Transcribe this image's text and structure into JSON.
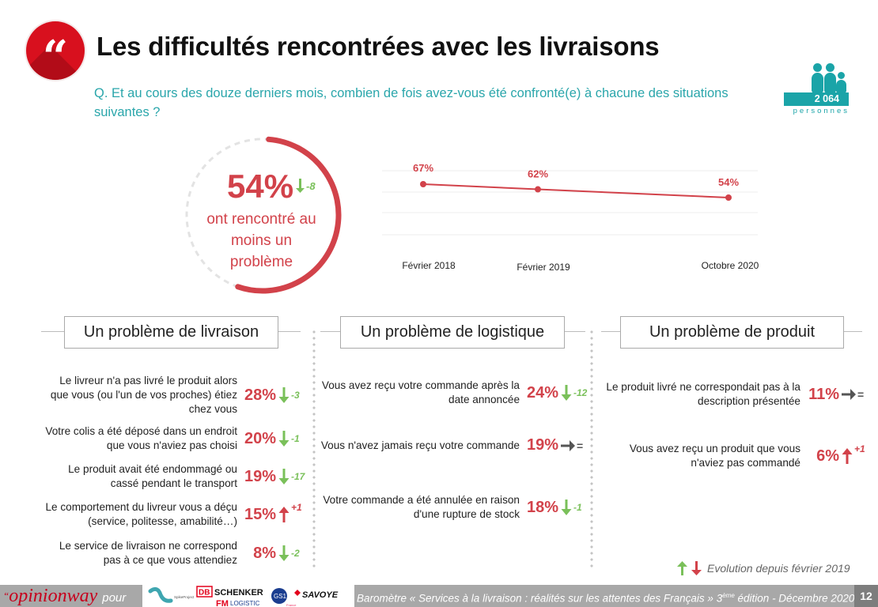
{
  "header": {
    "quote_icon": "quote-icon",
    "quote_glyph": "“",
    "title": "Les difficultés rencontrées avec les livraisons",
    "question": "Q. Et au cours des douze derniers mois, combien de fois avez-vous été confronté(e) à chacune des situations suivantes ?"
  },
  "respondents": {
    "icon": "people-icon",
    "count": "2 064",
    "label": "personnes"
  },
  "gauge": {
    "value_pct": 54,
    "value_label": "54%",
    "delta": "-8",
    "delta_direction": "down",
    "text": "ont rencontré au moins un problème"
  },
  "chart_data": {
    "type": "line",
    "title": "",
    "xlabel": "",
    "ylabel": "",
    "categories": [
      "Février 2018",
      "Février 2019",
      "Octobre 2020"
    ],
    "values": [
      67,
      62,
      54
    ],
    "data_labels": [
      "67%",
      "62%",
      "54%"
    ],
    "ylim": [
      0,
      80
    ],
    "grid": true,
    "series_color": "#d2424a"
  },
  "sections": [
    {
      "title": "Un problème de livraison",
      "items": [
        {
          "label": "Le livreur n'a pas livré le produit alors que vous (ou l'un de vos proches) étiez chez vous",
          "pct": "28%",
          "dir": "down",
          "delta": "-3"
        },
        {
          "label": "Votre colis a été déposé dans un endroit que vous n'aviez pas choisi",
          "pct": "20%",
          "dir": "down",
          "delta": "-1"
        },
        {
          "label": "Le produit avait été endommagé ou cassé pendant le transport",
          "pct": "19%",
          "dir": "down",
          "delta": "-17"
        },
        {
          "label": "Le comportement du livreur vous a déçu (service, politesse, amabilité…)",
          "pct": "15%",
          "dir": "up",
          "delta": "+1"
        },
        {
          "label": "Le service de livraison ne correspond pas à ce que vous attendiez",
          "pct": "8%",
          "dir": "down",
          "delta": "-2"
        }
      ]
    },
    {
      "title": "Un problème de logistique",
      "items": [
        {
          "label": "Vous avez reçu votre commande après la date annoncée",
          "pct": "24%",
          "dir": "down",
          "delta": "-12"
        },
        {
          "label": "Vous n'avez jamais reçu votre commande",
          "pct": "19%",
          "dir": "eq",
          "delta": "="
        },
        {
          "label": "Votre commande a été annulée en raison d'une rupture de stock",
          "pct": "18%",
          "dir": "down",
          "delta": "-1"
        }
      ]
    },
    {
      "title": "Un problème de produit",
      "items": [
        {
          "label": "Le produit livré ne correspondait pas à la description présentée",
          "pct": "11%",
          "dir": "eq",
          "delta": "="
        },
        {
          "label": "Vous avez reçu un produit que vous n'aviez pas commandé",
          "pct": "6%",
          "dir": "up",
          "delta": "+1"
        }
      ]
    }
  ],
  "legend": {
    "text": "Evolution depuis février 2019",
    "up_color": "#7ac05a",
    "down_color": "#d2424a"
  },
  "colors": {
    "accent_red": "#d2424a",
    "teal": "#1aa4a8",
    "green": "#7ac05a",
    "neutral_arrow": "#555555"
  },
  "footer": {
    "brand": "opinionway",
    "brand_suffix": "pour",
    "partners": [
      "SpikeProject",
      "DB",
      "SCHENKER",
      "FM",
      "LOGISTIC",
      "GS1",
      "France",
      "SAVOYE"
    ],
    "caption_pre": "Baromètre  « Services à la livraison : réalités sur les attentes des Français » 3",
    "caption_sup": "ème",
    "caption_post": " édition - Décembre 2020",
    "page": "12"
  }
}
